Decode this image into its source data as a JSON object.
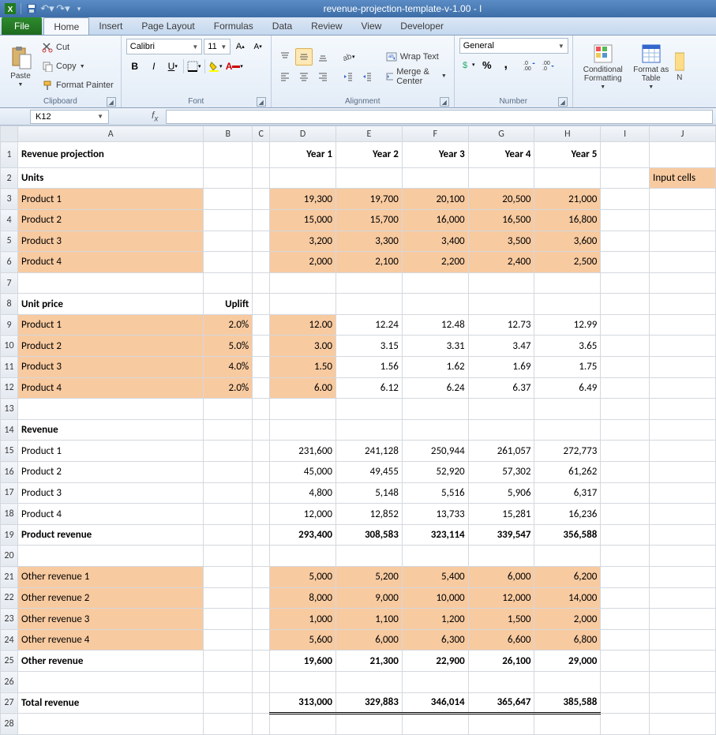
{
  "titlebar": {
    "title": "revenue-projection-template-v-1.00  -  I"
  },
  "qat": {
    "excel": "X",
    "save": "💾",
    "undo": "↶",
    "redo": "↷"
  },
  "tabs": {
    "file": "File",
    "list": [
      "Home",
      "Insert",
      "Page Layout",
      "Formulas",
      "Data",
      "Review",
      "View",
      "Developer"
    ],
    "active": "Home"
  },
  "ribbon": {
    "clipboard": {
      "paste": "Paste",
      "cut": "Cut",
      "copy": "Copy",
      "fmtpainter": "Format Painter",
      "label": "Clipboard"
    },
    "font": {
      "name": "Calibri",
      "size": "11",
      "label": "Font"
    },
    "alignment": {
      "wrap": "Wrap Text",
      "merge": "Merge & Center",
      "label": "Alignment"
    },
    "number": {
      "format": "General",
      "label": "Number"
    },
    "styles": {
      "cond": "Conditional Formatting",
      "fast": "Format as Table",
      "label": ""
    }
  },
  "namebox": {
    "ref": "K12",
    "formula": ""
  },
  "columns": [
    "A",
    "B",
    "C",
    "D",
    "E",
    "F",
    "G",
    "H",
    "I",
    "J"
  ],
  "sheet": {
    "title": "Revenue projection",
    "yearHeads": [
      "Year 1",
      "Year 2",
      "Year 3",
      "Year 4",
      "Year 5"
    ],
    "legend": "Input cells",
    "unitsLabel": "Units",
    "unitRows": [
      {
        "name": "Product 1",
        "vals": [
          "19,300",
          "19,700",
          "20,100",
          "20,500",
          "21,000"
        ]
      },
      {
        "name": "Product 2",
        "vals": [
          "15,000",
          "15,700",
          "16,000",
          "16,500",
          "16,800"
        ]
      },
      {
        "name": "Product 3",
        "vals": [
          "3,200",
          "3,300",
          "3,400",
          "3,500",
          "3,600"
        ]
      },
      {
        "name": "Product 4",
        "vals": [
          "2,000",
          "2,100",
          "2,200",
          "2,400",
          "2,500"
        ]
      }
    ],
    "priceLabel": "Unit price",
    "upliftLabel": "Uplift",
    "priceRows": [
      {
        "name": "Product 1",
        "uplift": "2.0%",
        "base": "12.00",
        "vals": [
          "12.24",
          "12.48",
          "12.73",
          "12.99"
        ]
      },
      {
        "name": "Product 2",
        "uplift": "5.0%",
        "base": "3.00",
        "vals": [
          "3.15",
          "3.31",
          "3.47",
          "3.65"
        ]
      },
      {
        "name": "Product 3",
        "uplift": "4.0%",
        "base": "1.50",
        "vals": [
          "1.56",
          "1.62",
          "1.69",
          "1.75"
        ]
      },
      {
        "name": "Product 4",
        "uplift": "2.0%",
        "base": "6.00",
        "vals": [
          "6.12",
          "6.24",
          "6.37",
          "6.49"
        ]
      }
    ],
    "revenueLabel": "Revenue",
    "revenueRows": [
      {
        "name": "Product 1",
        "vals": [
          "231,600",
          "241,128",
          "250,944",
          "261,057",
          "272,773"
        ]
      },
      {
        "name": "Product 2",
        "vals": [
          "45,000",
          "49,455",
          "52,920",
          "57,302",
          "61,262"
        ]
      },
      {
        "name": "Product 3",
        "vals": [
          "4,800",
          "5,148",
          "5,516",
          "5,906",
          "6,317"
        ]
      },
      {
        "name": "Product 4",
        "vals": [
          "12,000",
          "12,852",
          "13,733",
          "15,281",
          "16,236"
        ]
      }
    ],
    "productRevLabel": "Product revenue",
    "productRevTotals": [
      "293,400",
      "308,583",
      "323,114",
      "339,547",
      "356,588"
    ],
    "otherRows": [
      {
        "name": "Other revenue 1",
        "vals": [
          "5,000",
          "5,200",
          "5,400",
          "6,000",
          "6,200"
        ]
      },
      {
        "name": "Other revenue 2",
        "vals": [
          "8,000",
          "9,000",
          "10,000",
          "12,000",
          "14,000"
        ]
      },
      {
        "name": "Other revenue 3",
        "vals": [
          "1,000",
          "1,100",
          "1,200",
          "1,500",
          "2,000"
        ]
      },
      {
        "name": "Other revenue 4",
        "vals": [
          "5,600",
          "6,000",
          "6,300",
          "6,600",
          "6,800"
        ]
      }
    ],
    "otherRevLabel": "Other revenue",
    "otherRevTotals": [
      "19,600",
      "21,300",
      "22,900",
      "26,100",
      "29,000"
    ],
    "totalRevLabel": "Total revenue",
    "totalRevTotals": [
      "313,000",
      "329,883",
      "346,014",
      "365,647",
      "385,588"
    ]
  },
  "colors": {
    "inputFill": "#f8caa0",
    "inputText": "#8b4a1f",
    "gridBorder": "#d4d8de",
    "headerBg": "#e8ecf1"
  }
}
